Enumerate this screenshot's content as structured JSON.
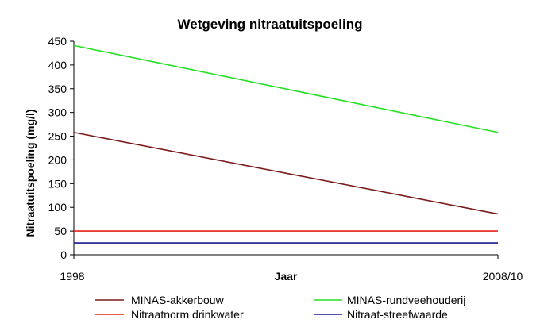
{
  "chart_data": {
    "type": "line",
    "title": "Wetgeving nitraatuitspoeling",
    "xlabel": "Jaar",
    "ylabel": "Nitraatuitspoeling (mg/l)",
    "x": [
      "1998",
      "2008/10"
    ],
    "ylim": [
      0,
      450
    ],
    "yticks": [
      0,
      50,
      100,
      150,
      200,
      250,
      300,
      350,
      400,
      450
    ],
    "grid": false,
    "legend_position": "bottom",
    "series": [
      {
        "name": "MINAS-akkerbouw",
        "values": [
          258,
          86
        ],
        "color": "#7a1a1a"
      },
      {
        "name": "MINAS-rundveehouderij",
        "values": [
          441,
          258
        ],
        "color": "#22e022"
      },
      {
        "name": "Nitraatnorm drinkwater",
        "values": [
          50,
          50
        ],
        "color": "#e8201a"
      },
      {
        "name": "Nitraat-streefwaarde",
        "values": [
          25,
          25
        ],
        "color": "#1a1a90"
      }
    ]
  }
}
